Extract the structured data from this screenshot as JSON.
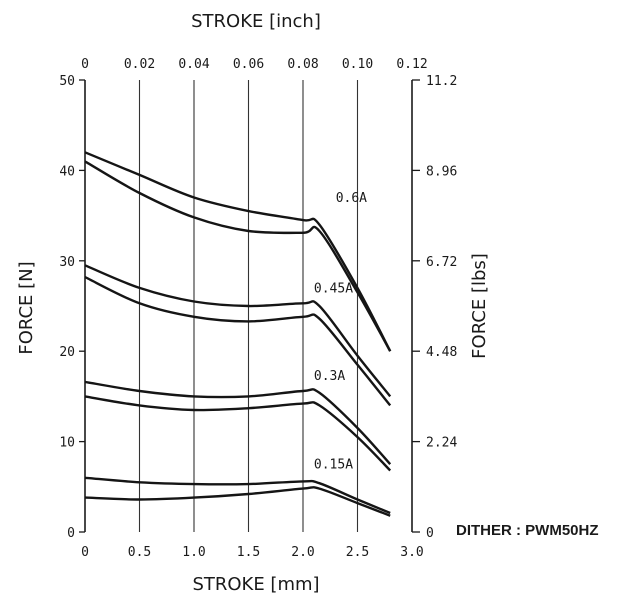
{
  "chart_data": {
    "type": "line",
    "x_axis_bottom": {
      "label": "STROKE [mm]",
      "range": [
        0,
        3.0
      ],
      "ticks": [
        0,
        0.5,
        1.0,
        1.5,
        2.0,
        2.5,
        3.0
      ],
      "tick_labels": [
        "0",
        "0.5",
        "1.0",
        "1.5",
        "2.0",
        "2.5",
        "3.0"
      ]
    },
    "x_axis_top": {
      "label": "STROKE [inch]",
      "range": [
        0,
        0.12
      ],
      "tick_labels": [
        "0",
        "0.02",
        "0.04",
        "0.06",
        "0.08",
        "0.10",
        "0.12"
      ]
    },
    "y_axis_left": {
      "label": "FORCE [N]",
      "range": [
        0,
        50
      ],
      "ticks": [
        0,
        10,
        20,
        30,
        40,
        50
      ],
      "tick_labels": [
        "0",
        "10",
        "20",
        "30",
        "40",
        "50"
      ]
    },
    "y_axis_right": {
      "label": "FORCE [lbs]",
      "range": [
        0,
        11.2
      ],
      "tick_labels": [
        "0",
        "2.24",
        "4.48",
        "6.72",
        "8.96",
        "11.2"
      ]
    },
    "grid": "vertical",
    "note": "DITHER : PWM50HZ",
    "series": [
      {
        "name": "0.6A",
        "branch": "upper",
        "points": [
          [
            0,
            42.0
          ],
          [
            0.5,
            39.5
          ],
          [
            1.0,
            37.0
          ],
          [
            1.5,
            35.5
          ],
          [
            2.0,
            34.5
          ],
          [
            2.15,
            34.0
          ],
          [
            2.5,
            27.0
          ],
          [
            2.8,
            20.0
          ]
        ]
      },
      {
        "name": "0.6A",
        "branch": "lower",
        "points": [
          [
            0,
            41.0
          ],
          [
            0.5,
            37.5
          ],
          [
            1.0,
            34.8
          ],
          [
            1.5,
            33.3
          ],
          [
            2.0,
            33.1
          ],
          [
            2.15,
            33.3
          ],
          [
            2.5,
            26.5
          ],
          [
            2.8,
            20.0
          ]
        ]
      },
      {
        "name": "0.45A",
        "branch": "upper",
        "points": [
          [
            0,
            29.5
          ],
          [
            0.5,
            27.0
          ],
          [
            1.0,
            25.5
          ],
          [
            1.5,
            25.0
          ],
          [
            2.0,
            25.3
          ],
          [
            2.15,
            25.0
          ],
          [
            2.5,
            19.5
          ],
          [
            2.8,
            15.0
          ]
        ]
      },
      {
        "name": "0.45A",
        "branch": "lower",
        "points": [
          [
            0,
            28.2
          ],
          [
            0.5,
            25.3
          ],
          [
            1.0,
            23.8
          ],
          [
            1.5,
            23.3
          ],
          [
            2.0,
            23.8
          ],
          [
            2.15,
            23.6
          ],
          [
            2.5,
            18.5
          ],
          [
            2.8,
            14.0
          ]
        ]
      },
      {
        "name": "0.3A",
        "branch": "upper",
        "points": [
          [
            0,
            16.6
          ],
          [
            0.5,
            15.6
          ],
          [
            1.0,
            15.0
          ],
          [
            1.5,
            15.0
          ],
          [
            2.0,
            15.6
          ],
          [
            2.15,
            15.4
          ],
          [
            2.5,
            11.5
          ],
          [
            2.8,
            7.5
          ]
        ]
      },
      {
        "name": "0.3A",
        "branch": "lower",
        "points": [
          [
            0,
            15.0
          ],
          [
            0.5,
            14.0
          ],
          [
            1.0,
            13.5
          ],
          [
            1.5,
            13.7
          ],
          [
            2.0,
            14.2
          ],
          [
            2.15,
            14.0
          ],
          [
            2.5,
            10.5
          ],
          [
            2.8,
            6.8
          ]
        ]
      },
      {
        "name": "0.15A",
        "branch": "upper",
        "points": [
          [
            0,
            6.0
          ],
          [
            0.5,
            5.5
          ],
          [
            1.0,
            5.3
          ],
          [
            1.5,
            5.3
          ],
          [
            2.0,
            5.6
          ],
          [
            2.15,
            5.4
          ],
          [
            2.5,
            3.6
          ],
          [
            2.8,
            2.1
          ]
        ]
      },
      {
        "name": "0.15A",
        "branch": "lower",
        "points": [
          [
            0,
            3.8
          ],
          [
            0.5,
            3.6
          ],
          [
            1.0,
            3.8
          ],
          [
            1.5,
            4.2
          ],
          [
            2.0,
            4.8
          ],
          [
            2.15,
            4.8
          ],
          [
            2.5,
            3.2
          ],
          [
            2.8,
            1.8
          ]
        ]
      }
    ],
    "curve_labels": [
      {
        "text": "0.6A",
        "x": 2.3,
        "y": 36.5
      },
      {
        "text": "0.45A",
        "x": 2.1,
        "y": 26.5
      },
      {
        "text": "0.3A",
        "x": 2.1,
        "y": 16.8
      },
      {
        "text": "0.15A",
        "x": 2.1,
        "y": 7.0
      }
    ]
  }
}
